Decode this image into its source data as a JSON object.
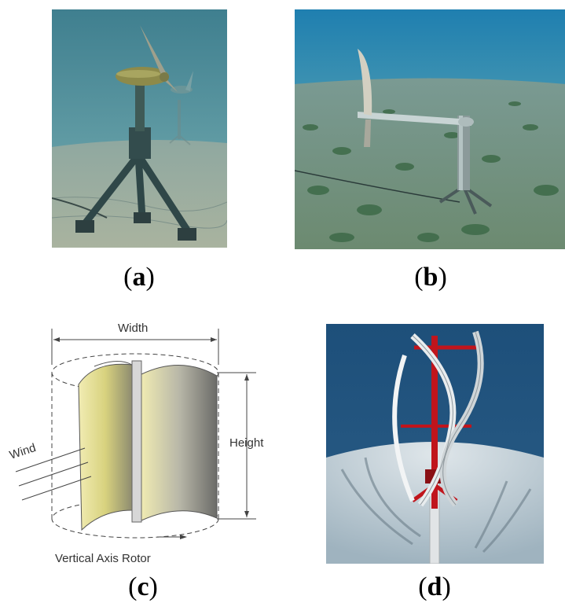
{
  "panels": [
    {
      "id": "a",
      "label": "a"
    },
    {
      "id": "b",
      "label": "b"
    },
    {
      "id": "c",
      "label": "c"
    },
    {
      "id": "d",
      "label": "d"
    }
  ],
  "diagram_c": {
    "width_label": "Width",
    "height_label": "Height",
    "wind_label": "Wind",
    "rotor_label": "Vertical Axis Rotor"
  }
}
